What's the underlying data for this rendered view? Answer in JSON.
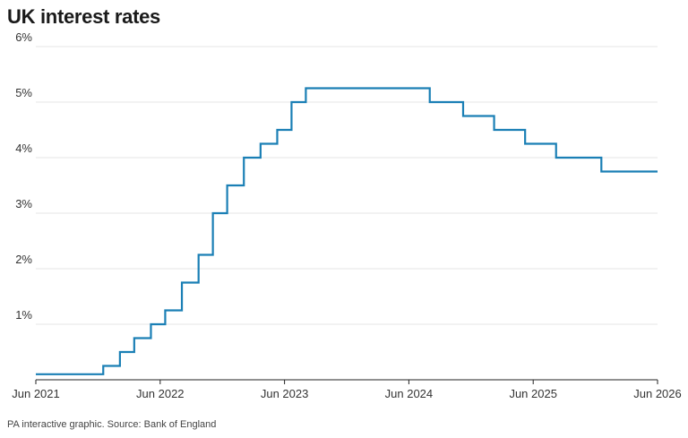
{
  "title": "UK interest rates",
  "source": "PA interactive graphic. Source: Bank of England",
  "chart_data": {
    "type": "line",
    "step": true,
    "title": "UK interest rates",
    "xlabel": "",
    "ylabel": "",
    "x_tick_labels": [
      "Jun 2021",
      "Jun 2022",
      "Jun 2023",
      "Jun 2024",
      "Jun 2025",
      "Jun 2026"
    ],
    "y_tick_labels": [
      "1%",
      "2%",
      "3%",
      "4%",
      "5%",
      "6%"
    ],
    "y_ticks": [
      1,
      2,
      3,
      4,
      5,
      6
    ],
    "ylim": [
      0,
      6
    ],
    "xlim": [
      "2021-06-01",
      "2026-06-01"
    ],
    "grid": true,
    "line_color": "#1a7fb5",
    "series": [
      {
        "x": [
          "2021-06-01",
          "2021-12-16",
          "2022-02-03",
          "2022-03-17",
          "2022-05-05",
          "2022-06-16",
          "2022-08-04",
          "2022-09-22",
          "2022-11-03",
          "2022-12-15",
          "2023-02-02",
          "2023-03-23",
          "2023-05-11",
          "2023-06-22",
          "2023-08-03",
          "2024-08-01",
          "2024-11-07",
          "2025-02-06",
          "2025-05-08",
          "2025-08-07",
          "2025-12-18",
          "2026-06-01"
        ],
        "values": [
          0.1,
          0.25,
          0.5,
          0.75,
          1.0,
          1.25,
          1.75,
          2.25,
          3.0,
          3.5,
          4.0,
          4.25,
          4.5,
          5.0,
          5.25,
          5.0,
          4.75,
          4.5,
          4.25,
          4.0,
          3.75,
          3.75
        ]
      }
    ]
  }
}
